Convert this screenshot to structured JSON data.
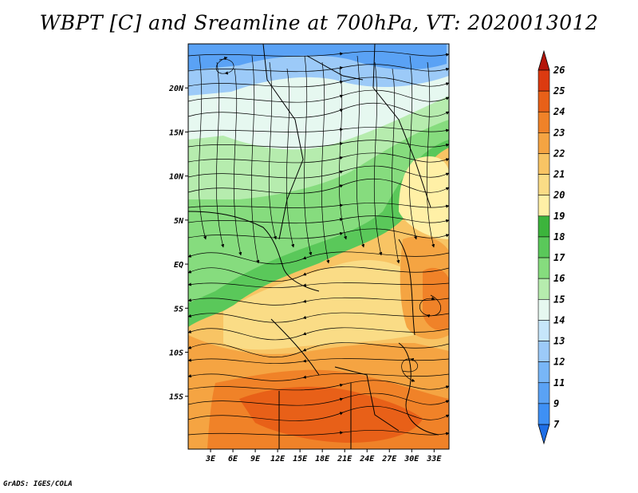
{
  "title": "WBPT [C] and Sreamline at 700hPa, VT: 2020013012",
  "footer": "GrADS: IGES/COLA",
  "map": {
    "lon_range": [
      0,
      35
    ],
    "lat_range": [
      -21,
      25
    ],
    "lat_ticks": [
      {
        "value": 20,
        "label": "20N"
      },
      {
        "value": 15,
        "label": "15N"
      },
      {
        "value": 10,
        "label": "10N"
      },
      {
        "value": 5,
        "label": "5N"
      },
      {
        "value": 0,
        "label": "EQ"
      },
      {
        "value": -5,
        "label": "5S"
      },
      {
        "value": -10,
        "label": "10S"
      },
      {
        "value": -15,
        "label": "15S"
      }
    ],
    "lon_ticks": [
      {
        "value": 3,
        "label": "3E"
      },
      {
        "value": 6,
        "label": "6E"
      },
      {
        "value": 9,
        "label": "9E"
      },
      {
        "value": 12,
        "label": "12E"
      },
      {
        "value": 15,
        "label": "15E"
      },
      {
        "value": 18,
        "label": "18E"
      },
      {
        "value": 21,
        "label": "21E"
      },
      {
        "value": 24,
        "label": "24E"
      },
      {
        "value": 27,
        "label": "27E"
      },
      {
        "value": 30,
        "label": "30E"
      },
      {
        "value": 33,
        "label": "33E"
      }
    ]
  },
  "colorbar": {
    "levels": [
      "7",
      "9",
      "11",
      "12",
      "13",
      "14",
      "15",
      "16",
      "17",
      "18",
      "19",
      "20",
      "21",
      "22",
      "23",
      "24",
      "25",
      "26"
    ],
    "colors": [
      "#1e6ee6",
      "#2b7ff0",
      "#3e90f5",
      "#5aa2f5",
      "#78b6f7",
      "#9ccaf8",
      "#c6e6fa",
      "#e6f8f0",
      "#b6ecae",
      "#86dc7e",
      "#5ac85a",
      "#3cb43c",
      "#fff0a6",
      "#fadc86",
      "#f8c464",
      "#f5a442",
      "#f08228",
      "#e86018",
      "#dc3a10",
      "#b4140a"
    ]
  },
  "colors": {
    "land_base": "#f8c464",
    "coastline": "#000000",
    "streamline": "#000000"
  }
}
